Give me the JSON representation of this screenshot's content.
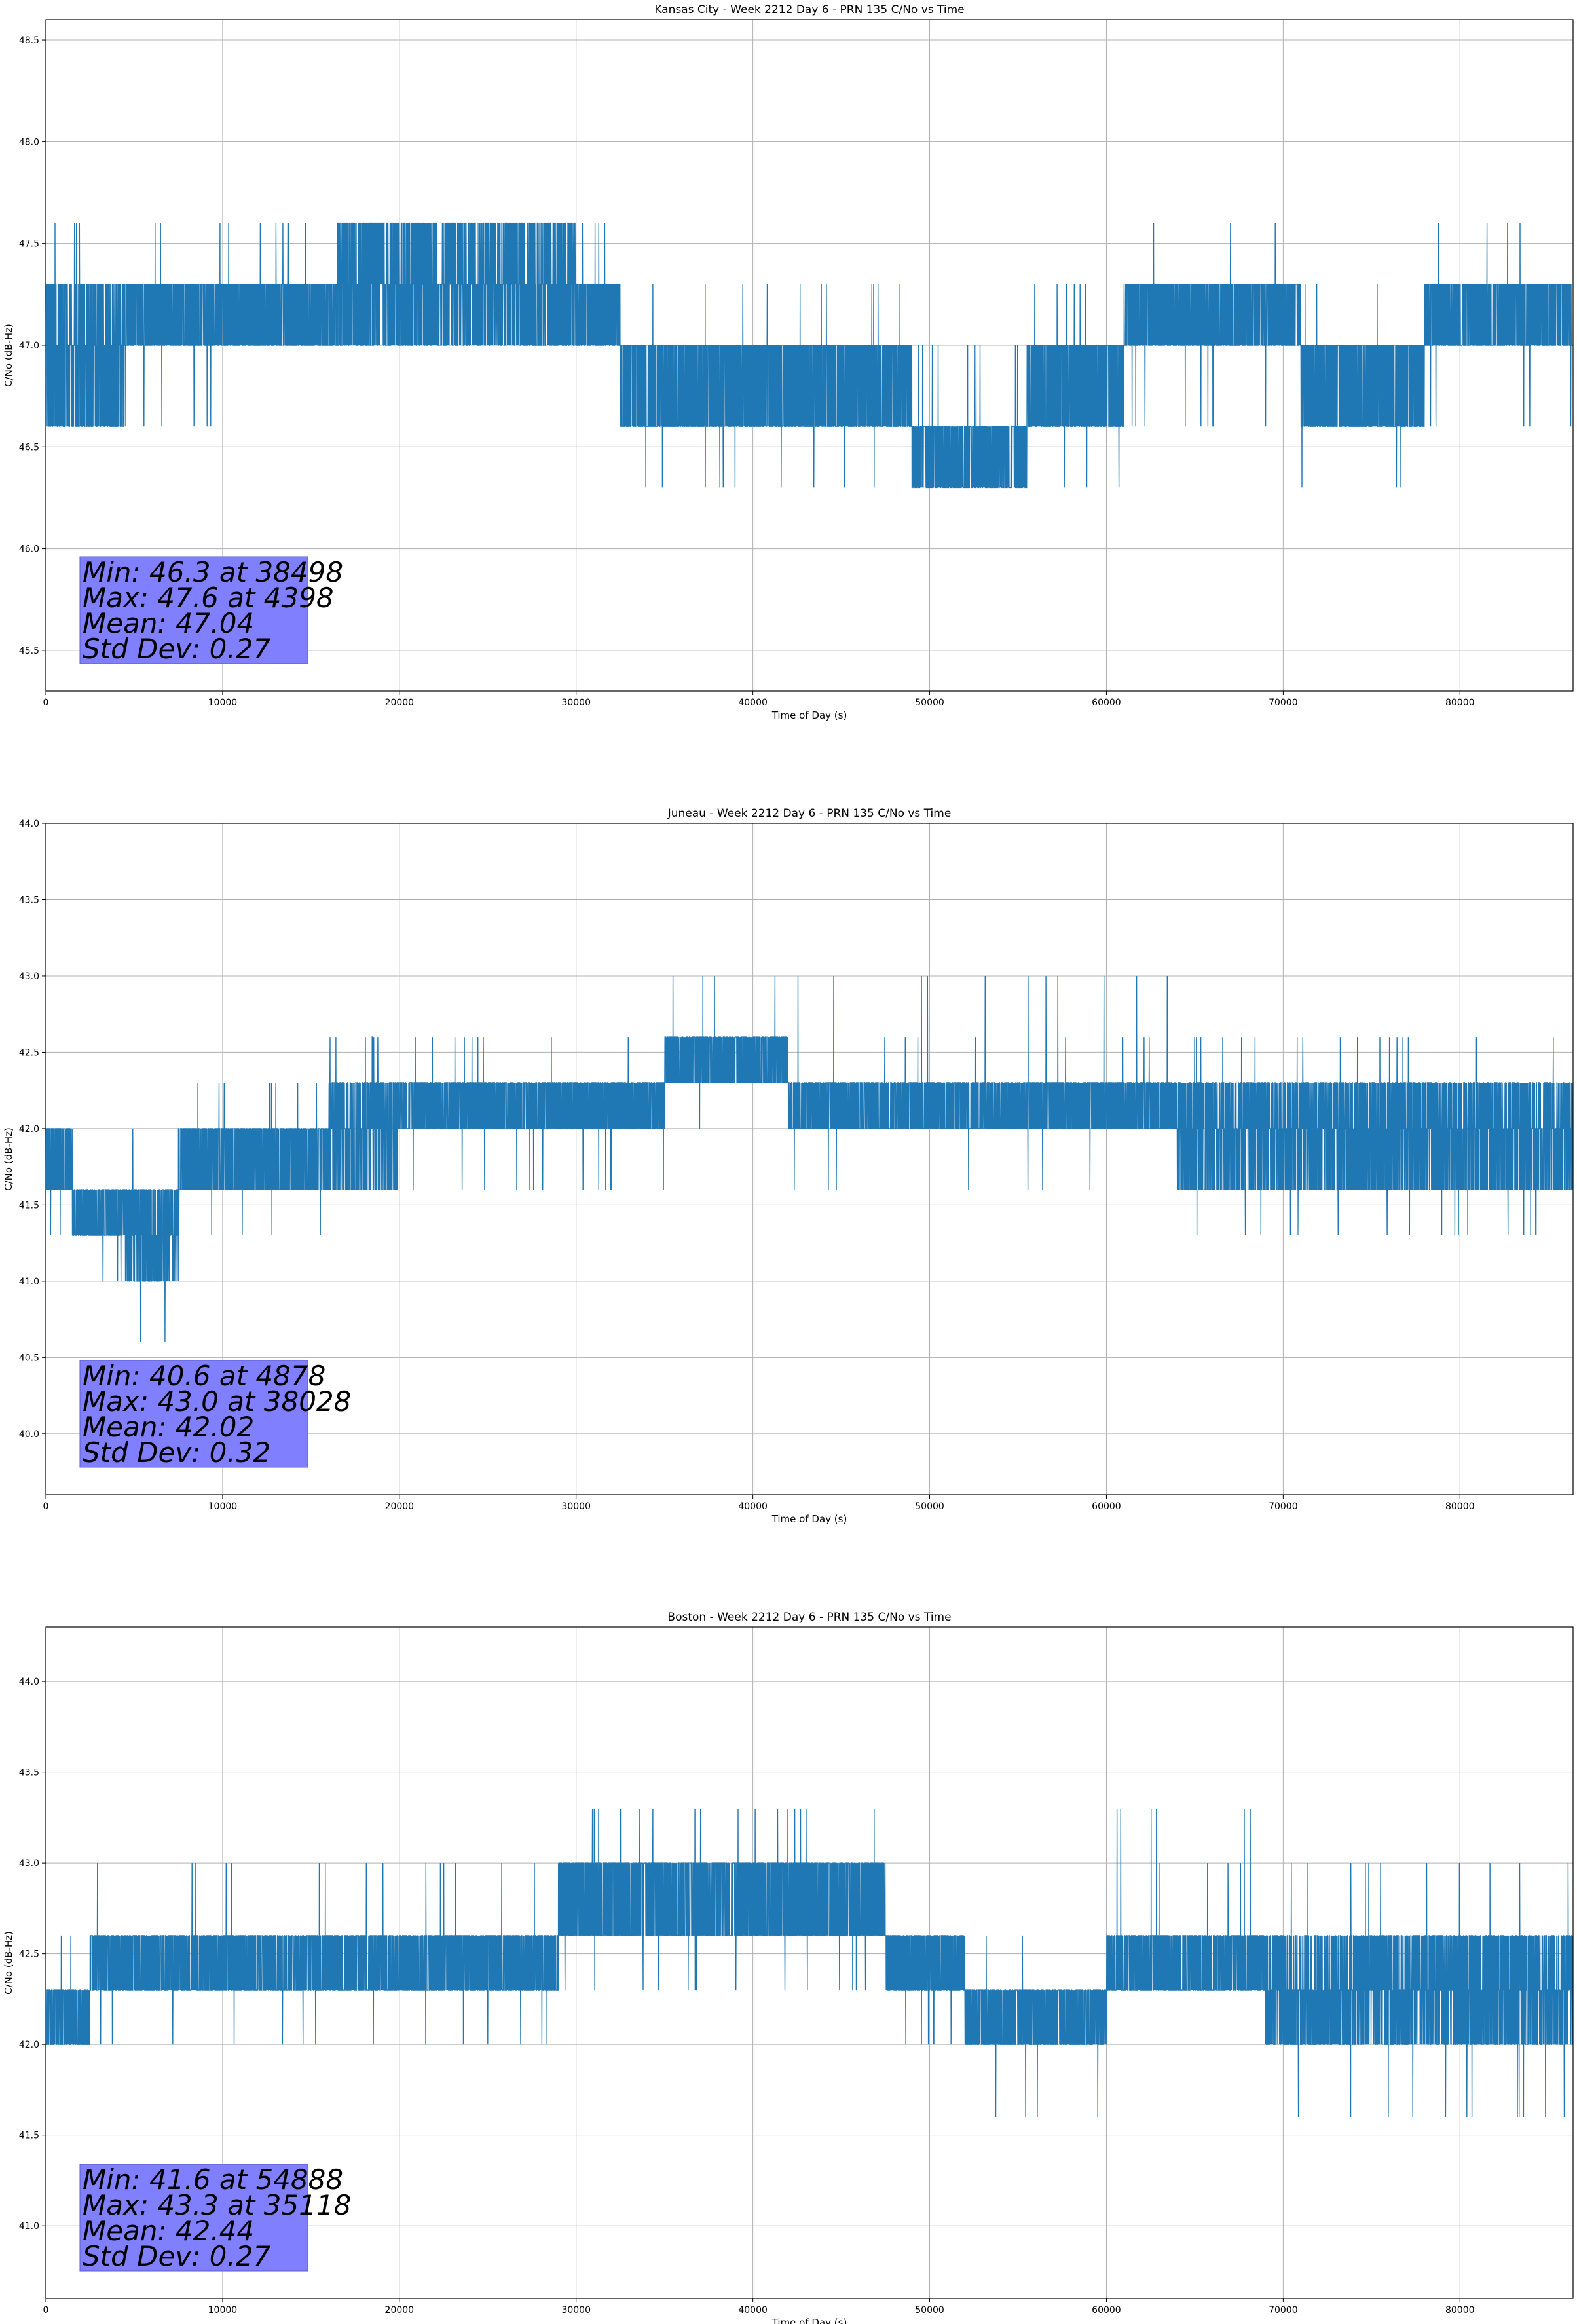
{
  "chart_data": [
    {
      "type": "line",
      "title": "Kansas City - Week 2212 Day 6 - PRN 135 C/No vs Time",
      "xlabel": "Time of Day (s)",
      "ylabel": "C/No (dB-Hz)",
      "xlim": [
        0,
        86400
      ],
      "ylim": [
        45.3,
        48.6
      ],
      "xticks": [
        0,
        10000,
        20000,
        30000,
        40000,
        50000,
        60000,
        70000,
        80000
      ],
      "yticks": [
        "45.5",
        "46.0",
        "46.5",
        "47.0",
        "47.5",
        "48.0",
        "48.5"
      ],
      "grid": true,
      "series_color": "#1f77b4",
      "quantization": 0.3,
      "segments": [
        {
          "start": 0,
          "end": 4500,
          "levels": [
            46.6,
            47.0,
            47.3
          ],
          "spikes": [
            47.6
          ]
        },
        {
          "start": 4500,
          "end": 9500,
          "levels": [
            47.0,
            47.3
          ],
          "spikes": [
            47.6,
            46.6
          ]
        },
        {
          "start": 9500,
          "end": 16500,
          "levels": [
            47.0,
            47.3
          ],
          "spikes": [
            47.6
          ]
        },
        {
          "start": 16500,
          "end": 30000,
          "levels": [
            47.0,
            47.3,
            47.6
          ],
          "spikes": [
            47.6
          ]
        },
        {
          "start": 30000,
          "end": 32500,
          "levels": [
            47.0,
            47.3
          ],
          "spikes": [
            47.6
          ]
        },
        {
          "start": 32500,
          "end": 49000,
          "levels": [
            46.6,
            47.0
          ],
          "spikes": [
            47.3,
            46.3
          ]
        },
        {
          "start": 49000,
          "end": 55500,
          "levels": [
            46.3,
            46.6
          ],
          "spikes": [
            47.0
          ]
        },
        {
          "start": 55500,
          "end": 61000,
          "levels": [
            46.6,
            47.0
          ],
          "spikes": [
            47.3,
            46.3
          ]
        },
        {
          "start": 61000,
          "end": 71000,
          "levels": [
            47.0,
            47.3
          ],
          "spikes": [
            47.6,
            46.6
          ]
        },
        {
          "start": 71000,
          "end": 78000,
          "levels": [
            46.6,
            47.0
          ],
          "spikes": [
            47.3,
            46.3
          ]
        },
        {
          "start": 78000,
          "end": 86400,
          "levels": [
            47.0,
            47.3
          ],
          "spikes": [
            47.6,
            46.6
          ]
        }
      ],
      "stats": [
        "Min: 46.3 at 38498",
        "Max: 47.6 at 4398",
        "Mean: 47.04",
        "Std Dev: 0.27"
      ]
    },
    {
      "type": "line",
      "title": "Juneau - Week 2212 Day 6 - PRN 135 C/No vs Time",
      "xlabel": "Time of Day (s)",
      "ylabel": "C/No (dB-Hz)",
      "xlim": [
        0,
        86400
      ],
      "ylim": [
        39.6,
        44.0
      ],
      "xticks": [
        0,
        10000,
        20000,
        30000,
        40000,
        50000,
        60000,
        70000,
        80000
      ],
      "yticks": [
        "40.0",
        "40.5",
        "41.0",
        "41.5",
        "42.0",
        "42.5",
        "43.0",
        "43.5",
        "44.0"
      ],
      "grid": true,
      "series_color": "#1f77b4",
      "quantization": 0.3,
      "segments": [
        {
          "start": 0,
          "end": 1500,
          "levels": [
            41.6,
            42.0
          ],
          "spikes": [
            41.3
          ]
        },
        {
          "start": 1500,
          "end": 4500,
          "levels": [
            41.3,
            41.6
          ],
          "spikes": [
            41.0
          ]
        },
        {
          "start": 4500,
          "end": 7500,
          "levels": [
            41.0,
            41.3,
            41.6
          ],
          "spikes": [
            40.6,
            42.0
          ]
        },
        {
          "start": 7500,
          "end": 16000,
          "levels": [
            41.6,
            42.0
          ],
          "spikes": [
            42.3,
            41.3
          ]
        },
        {
          "start": 16000,
          "end": 20000,
          "levels": [
            41.6,
            42.0,
            42.3
          ],
          "spikes": [
            42.6
          ]
        },
        {
          "start": 20000,
          "end": 35000,
          "levels": [
            42.0,
            42.3
          ],
          "spikes": [
            42.6,
            41.6
          ]
        },
        {
          "start": 35000,
          "end": 42000,
          "levels": [
            42.3,
            42.6
          ],
          "spikes": [
            43.0,
            42.0
          ]
        },
        {
          "start": 42000,
          "end": 64000,
          "levels": [
            42.0,
            42.3
          ],
          "spikes": [
            42.6,
            41.6,
            43.0
          ]
        },
        {
          "start": 64000,
          "end": 86400,
          "levels": [
            41.6,
            42.0,
            42.3
          ],
          "spikes": [
            42.6,
            41.3
          ]
        }
      ],
      "stats": [
        "Min: 40.6 at 4878",
        "Max: 43.0 at 38028",
        "Mean: 42.02",
        "Std Dev: 0.32"
      ]
    },
    {
      "type": "line",
      "title": "Boston - Week 2212 Day 6 - PRN 135 C/No vs Time",
      "xlabel": "Time of Day (s)",
      "ylabel": "C/No (dB-Hz)",
      "xlim": [
        0,
        86400
      ],
      "ylim": [
        40.6,
        44.3
      ],
      "xticks": [
        0,
        10000,
        20000,
        30000,
        40000,
        50000,
        60000,
        70000,
        80000
      ],
      "yticks": [
        "41.0",
        "41.5",
        "42.0",
        "42.5",
        "43.0",
        "43.5",
        "44.0"
      ],
      "grid": true,
      "series_color": "#1f77b4",
      "quantization": 0.3,
      "segments": [
        {
          "start": 0,
          "end": 2500,
          "levels": [
            42.0,
            42.3
          ],
          "spikes": [
            42.6
          ]
        },
        {
          "start": 2500,
          "end": 29000,
          "levels": [
            42.3,
            42.6
          ],
          "spikes": [
            42.0,
            43.0
          ]
        },
        {
          "start": 29000,
          "end": 47500,
          "levels": [
            42.6,
            43.0
          ],
          "spikes": [
            43.3,
            42.3
          ]
        },
        {
          "start": 47500,
          "end": 52000,
          "levels": [
            42.3,
            42.6
          ],
          "spikes": [
            42.0
          ]
        },
        {
          "start": 52000,
          "end": 60000,
          "levels": [
            42.0,
            42.3
          ],
          "spikes": [
            41.6,
            42.6
          ]
        },
        {
          "start": 60000,
          "end": 69000,
          "levels": [
            42.3,
            42.6
          ],
          "spikes": [
            43.0,
            43.3
          ]
        },
        {
          "start": 69000,
          "end": 86400,
          "levels": [
            42.0,
            42.3,
            42.6
          ],
          "spikes": [
            41.6,
            43.0
          ]
        }
      ],
      "stats": [
        "Min: 41.6 at 54888",
        "Max: 43.3 at 35118",
        "Mean: 42.44",
        "Std Dev: 0.27"
      ]
    }
  ]
}
